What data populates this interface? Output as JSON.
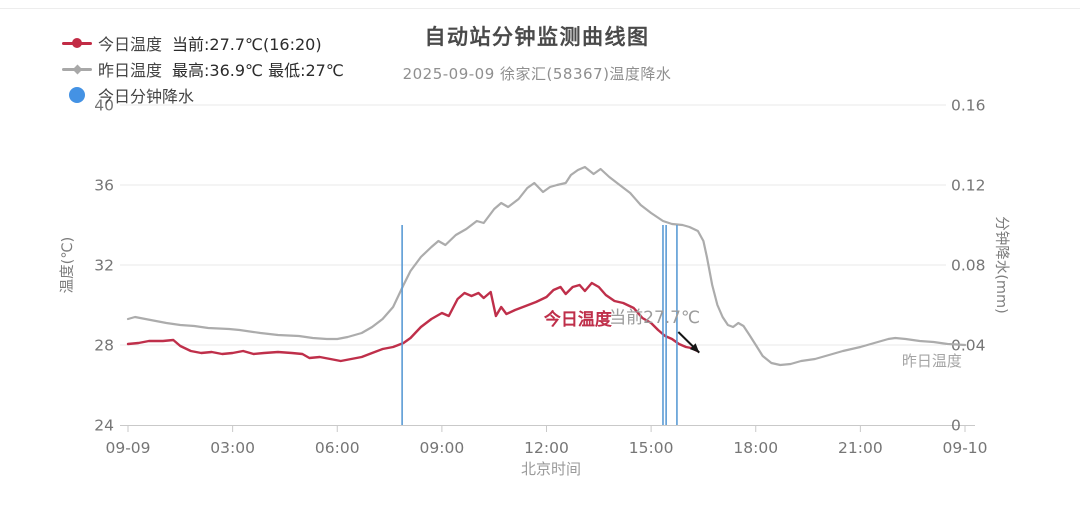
{
  "title": "自动站分钟监测曲线图",
  "subtitle": "2025-09-09 徐家汇(58367)温度降水",
  "legend": {
    "items": [
      {
        "label": "今日温度",
        "value": "当前:27.7℃(16:20)",
        "color": "#c22b45",
        "marker": "line-dot"
      },
      {
        "label": "昨日温度",
        "value": "最高:36.9℃ 最低:27℃",
        "color": "#a8a8a8",
        "marker": "line-diamond"
      },
      {
        "label": "今日分钟降水",
        "value": "",
        "color": "#4492e4",
        "marker": "circle"
      }
    ]
  },
  "annotations": {
    "today_label": {
      "text": "今日温度",
      "t": 12.9,
      "temp": 29.3,
      "color": "#bf2f4a"
    },
    "current_label": {
      "text": "当前27.7℃",
      "t": 15.1,
      "temp": 29.4,
      "color": "#9b9b9b"
    },
    "yesterday_label": {
      "text": "昨日温度",
      "t": 23.05,
      "temp": 27.2,
      "color": "#a5a5a5"
    },
    "arrow": {
      "from_t": 15.78,
      "from_temp": 28.65,
      "to_t": 16.38,
      "to_temp": 27.62,
      "color": "#151515"
    }
  },
  "chart_data": {
    "type": "line",
    "title": "自动站分钟监测曲线图",
    "subtitle": "2025-09-09 徐家汇(58367)温度降水",
    "xlabel": "北京时间",
    "x_ticks": [
      "09-09",
      "03:00",
      "06:00",
      "09:00",
      "12:00",
      "15:00",
      "18:00",
      "21:00",
      "09-10"
    ],
    "x_tick_hours": [
      0,
      3,
      6,
      9,
      12,
      15,
      18,
      21,
      24
    ],
    "x_range_hours": [
      0,
      24
    ],
    "grid": "horizontal",
    "left_axis": {
      "label": "温度(℃)",
      "range": [
        24,
        40
      ],
      "ticks": [
        24,
        28,
        32,
        36,
        40
      ]
    },
    "right_axis": {
      "label": "分钟降水(mm)",
      "range": [
        0,
        0.16
      ],
      "ticks": [
        "0",
        "0.04",
        "0.08",
        "0.12",
        "0.16"
      ]
    },
    "series": [
      {
        "name": "今日温度",
        "type": "line",
        "axis": "left",
        "color": "#bf2f4a",
        "points": [
          [
            0,
            28.05
          ],
          [
            0.3,
            28.1
          ],
          [
            0.6,
            28.2
          ],
          [
            1.0,
            28.2
          ],
          [
            1.3,
            28.25
          ],
          [
            1.5,
            27.95
          ],
          [
            1.8,
            27.7
          ],
          [
            2.1,
            27.6
          ],
          [
            2.4,
            27.65
          ],
          [
            2.7,
            27.55
          ],
          [
            3.0,
            27.6
          ],
          [
            3.3,
            27.7
          ],
          [
            3.6,
            27.55
          ],
          [
            3.9,
            27.6
          ],
          [
            4.3,
            27.65
          ],
          [
            4.7,
            27.6
          ],
          [
            5.0,
            27.55
          ],
          [
            5.2,
            27.35
          ],
          [
            5.5,
            27.4
          ],
          [
            5.8,
            27.3
          ],
          [
            6.1,
            27.2
          ],
          [
            6.4,
            27.3
          ],
          [
            6.7,
            27.4
          ],
          [
            7.0,
            27.6
          ],
          [
            7.3,
            27.8
          ],
          [
            7.6,
            27.9
          ],
          [
            7.9,
            28.1
          ],
          [
            8.1,
            28.35
          ],
          [
            8.4,
            28.9
          ],
          [
            8.7,
            29.3
          ],
          [
            9.0,
            29.6
          ],
          [
            9.2,
            29.45
          ],
          [
            9.45,
            30.3
          ],
          [
            9.65,
            30.6
          ],
          [
            9.85,
            30.45
          ],
          [
            10.05,
            30.6
          ],
          [
            10.2,
            30.35
          ],
          [
            10.4,
            30.65
          ],
          [
            10.55,
            29.45
          ],
          [
            10.7,
            29.9
          ],
          [
            10.85,
            29.55
          ],
          [
            11.1,
            29.75
          ],
          [
            11.4,
            29.95
          ],
          [
            11.7,
            30.15
          ],
          [
            12.0,
            30.4
          ],
          [
            12.2,
            30.75
          ],
          [
            12.4,
            30.9
          ],
          [
            12.55,
            30.55
          ],
          [
            12.75,
            30.9
          ],
          [
            12.95,
            31.0
          ],
          [
            13.1,
            30.7
          ],
          [
            13.3,
            31.1
          ],
          [
            13.5,
            30.9
          ],
          [
            13.7,
            30.5
          ],
          [
            13.95,
            30.2
          ],
          [
            14.2,
            30.1
          ],
          [
            14.5,
            29.85
          ],
          [
            14.75,
            29.35
          ],
          [
            15.0,
            29.1
          ],
          [
            15.2,
            28.75
          ],
          [
            15.4,
            28.45
          ],
          [
            15.6,
            28.3
          ],
          [
            15.8,
            28.05
          ],
          [
            16.0,
            27.9
          ],
          [
            16.15,
            27.85
          ],
          [
            16.33,
            27.7
          ]
        ]
      },
      {
        "name": "昨日温度",
        "type": "line",
        "axis": "left",
        "color": "#acacac",
        "points": [
          [
            0,
            29.3
          ],
          [
            0.2,
            29.4
          ],
          [
            0.5,
            29.3
          ],
          [
            0.8,
            29.2
          ],
          [
            1.1,
            29.1
          ],
          [
            1.5,
            29.0
          ],
          [
            1.9,
            28.95
          ],
          [
            2.3,
            28.85
          ],
          [
            2.9,
            28.8
          ],
          [
            3.2,
            28.75
          ],
          [
            3.8,
            28.6
          ],
          [
            4.3,
            28.5
          ],
          [
            4.9,
            28.45
          ],
          [
            5.3,
            28.35
          ],
          [
            5.7,
            28.3
          ],
          [
            6.0,
            28.3
          ],
          [
            6.3,
            28.4
          ],
          [
            6.7,
            28.6
          ],
          [
            7.0,
            28.9
          ],
          [
            7.3,
            29.3
          ],
          [
            7.6,
            29.9
          ],
          [
            7.9,
            31.0
          ],
          [
            8.1,
            31.7
          ],
          [
            8.4,
            32.4
          ],
          [
            8.7,
            32.9
          ],
          [
            8.9,
            33.2
          ],
          [
            9.1,
            33.0
          ],
          [
            9.4,
            33.5
          ],
          [
            9.7,
            33.8
          ],
          [
            10.0,
            34.2
          ],
          [
            10.2,
            34.1
          ],
          [
            10.5,
            34.8
          ],
          [
            10.7,
            35.1
          ],
          [
            10.9,
            34.9
          ],
          [
            11.2,
            35.3
          ],
          [
            11.45,
            35.85
          ],
          [
            11.65,
            36.1
          ],
          [
            11.9,
            35.65
          ],
          [
            12.1,
            35.9
          ],
          [
            12.3,
            36.0
          ],
          [
            12.55,
            36.1
          ],
          [
            12.7,
            36.5
          ],
          [
            12.9,
            36.75
          ],
          [
            13.1,
            36.9
          ],
          [
            13.35,
            36.55
          ],
          [
            13.55,
            36.8
          ],
          [
            13.8,
            36.4
          ],
          [
            14.1,
            36.0
          ],
          [
            14.4,
            35.6
          ],
          [
            14.7,
            35.0
          ],
          [
            15.0,
            34.6
          ],
          [
            15.34,
            34.2
          ],
          [
            15.6,
            34.05
          ],
          [
            15.9,
            34.0
          ],
          [
            16.1,
            33.9
          ],
          [
            16.34,
            33.7
          ],
          [
            16.5,
            33.2
          ],
          [
            16.6,
            32.4
          ],
          [
            16.75,
            31.0
          ],
          [
            16.9,
            30.0
          ],
          [
            17.05,
            29.4
          ],
          [
            17.2,
            29.0
          ],
          [
            17.35,
            28.9
          ],
          [
            17.5,
            29.1
          ],
          [
            17.65,
            28.95
          ],
          [
            17.8,
            28.55
          ],
          [
            18.0,
            28.0
          ],
          [
            18.2,
            27.45
          ],
          [
            18.45,
            27.1
          ],
          [
            18.7,
            27.0
          ],
          [
            19.0,
            27.05
          ],
          [
            19.3,
            27.2
          ],
          [
            19.7,
            27.3
          ],
          [
            20.1,
            27.5
          ],
          [
            20.5,
            27.7
          ],
          [
            21.0,
            27.9
          ],
          [
            21.4,
            28.1
          ],
          [
            21.8,
            28.3
          ],
          [
            22.0,
            28.35
          ],
          [
            22.3,
            28.3
          ],
          [
            22.7,
            28.2
          ],
          [
            23.1,
            28.15
          ],
          [
            23.5,
            28.05
          ],
          [
            24,
            28.0
          ]
        ]
      },
      {
        "name": "今日分钟降水",
        "type": "bar",
        "axis": "right",
        "color": "#5b9bd5",
        "points": [
          [
            7.86,
            0.1
          ],
          [
            15.34,
            0.1
          ],
          [
            15.43,
            0.1
          ],
          [
            15.74,
            0.1
          ]
        ]
      }
    ]
  }
}
